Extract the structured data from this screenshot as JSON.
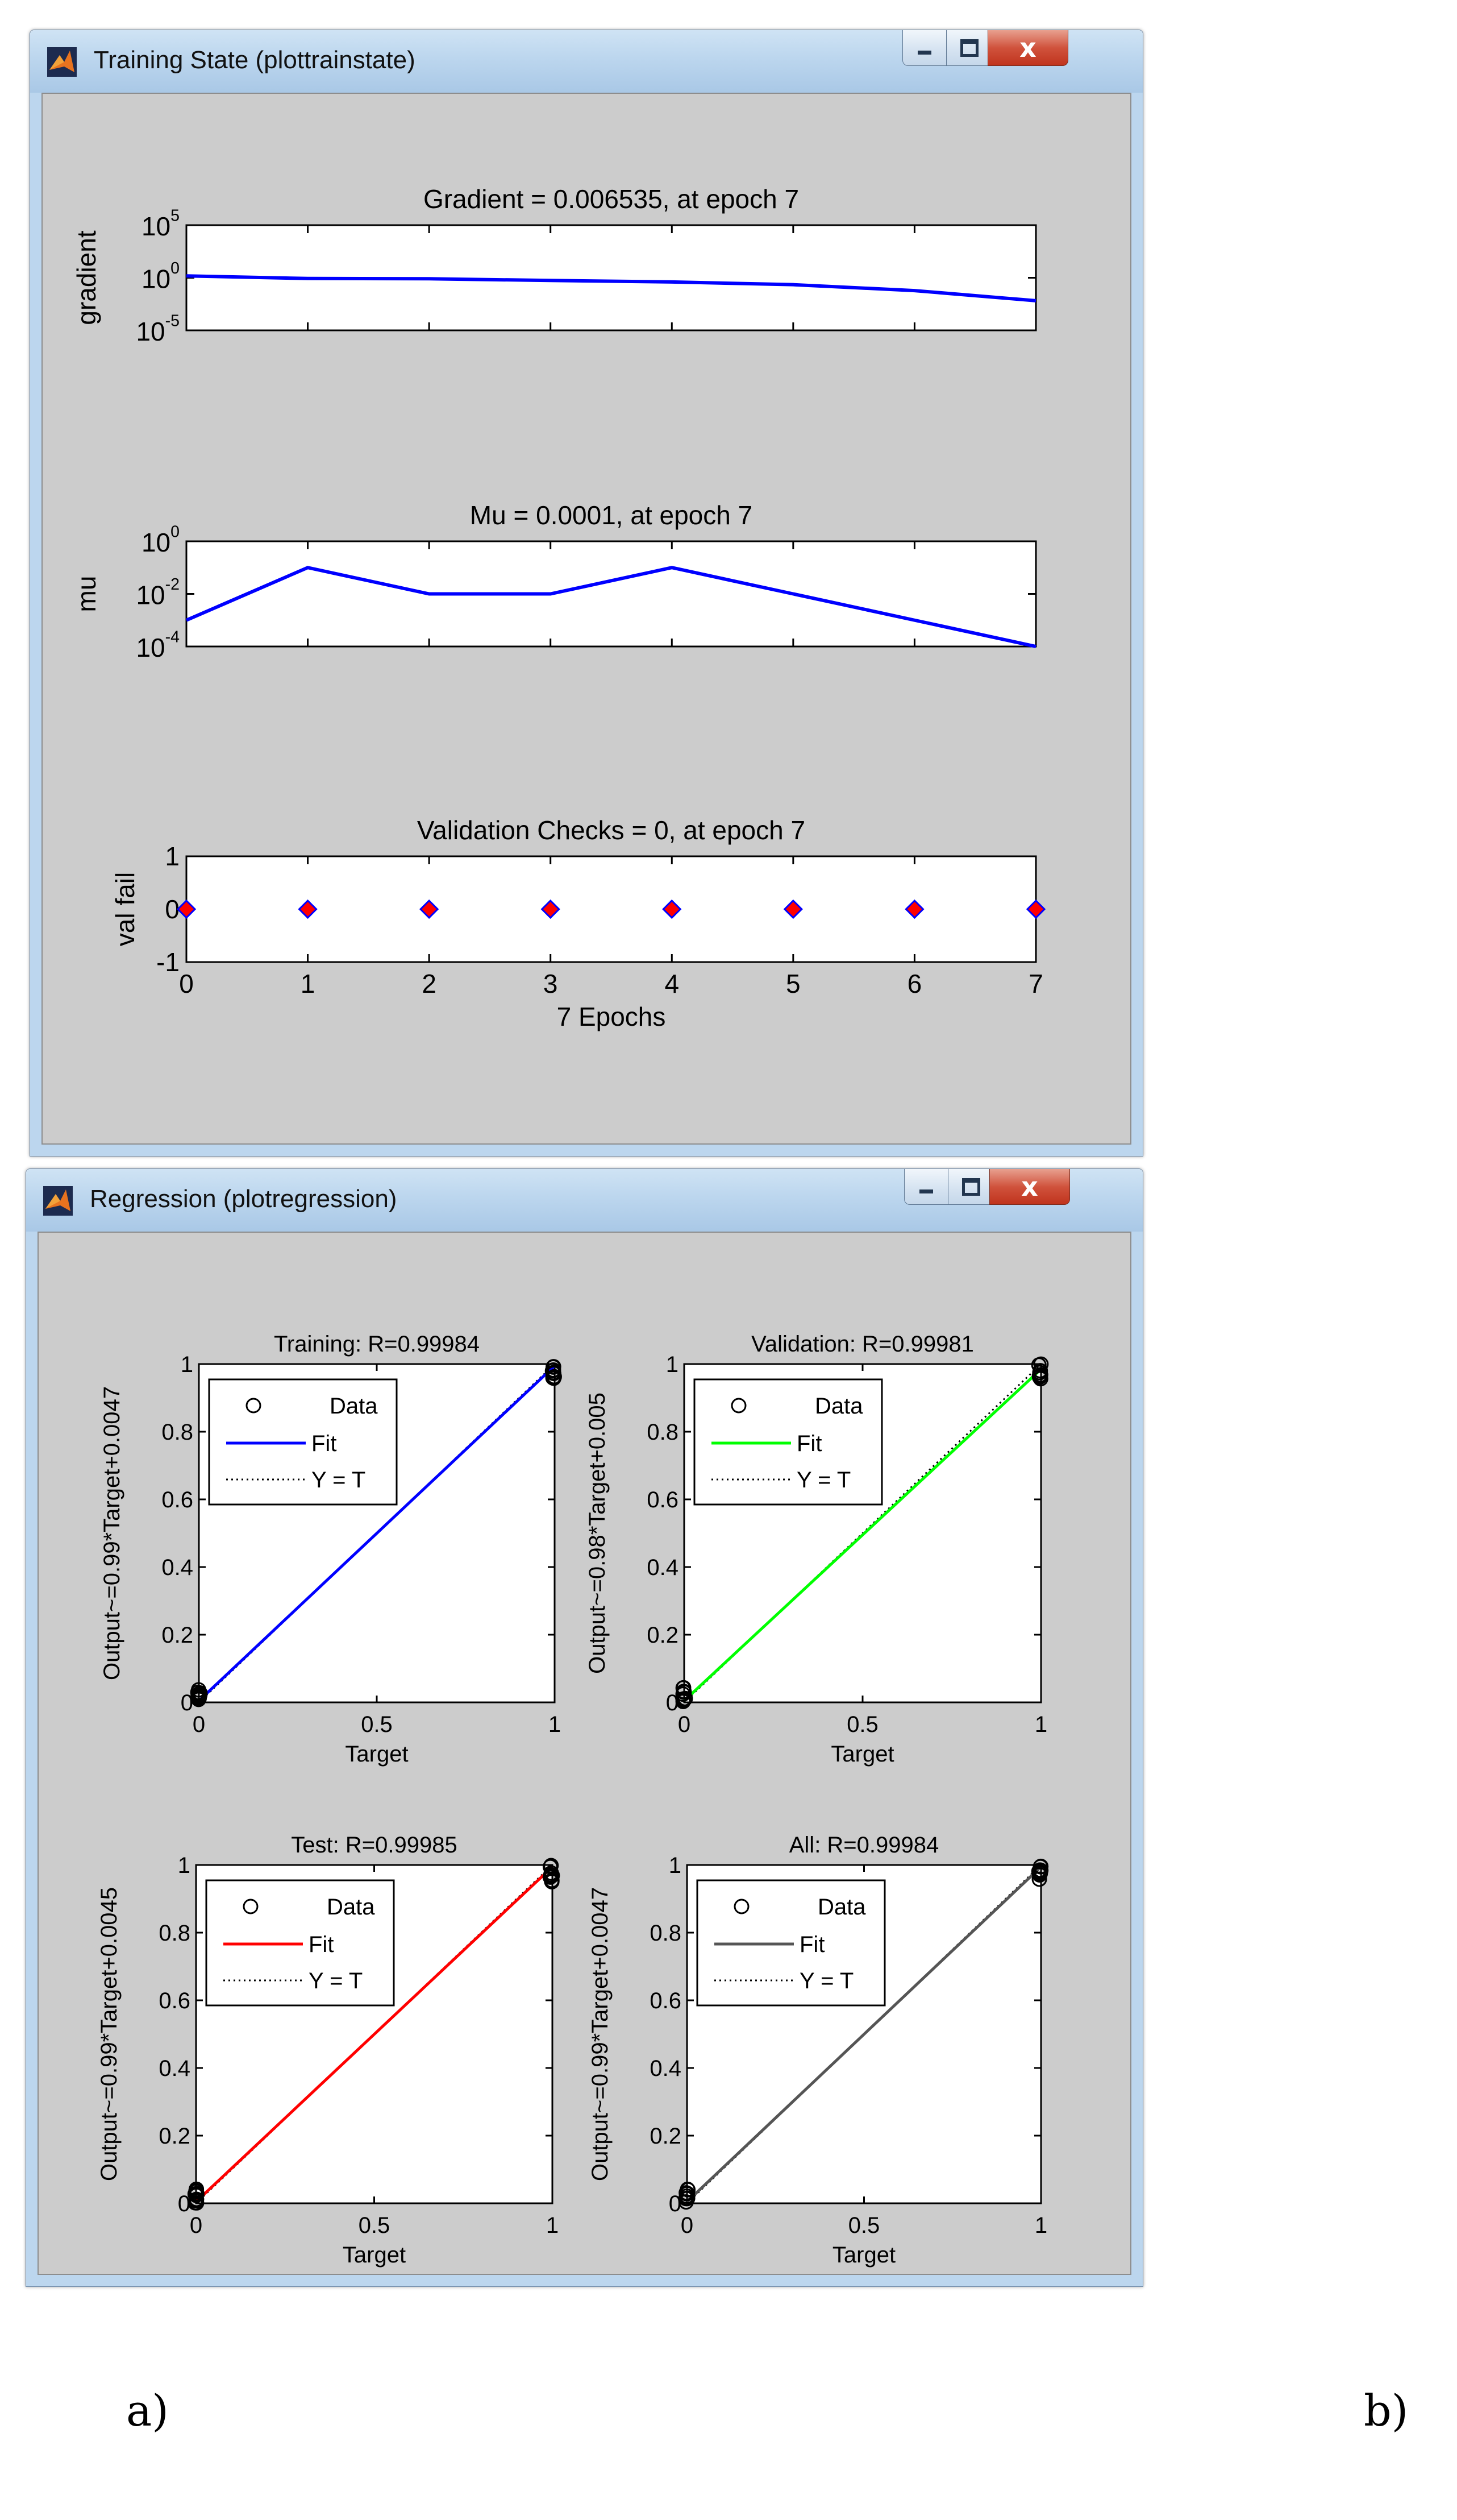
{
  "window_a": {
    "title": "Training State (plottrainstate)",
    "buttons": {
      "minimize": "minimize",
      "maximize": "maximize",
      "close": "x"
    }
  },
  "window_b": {
    "title": "Regression (plotregression)",
    "buttons": {
      "minimize": "minimize",
      "maximize": "maximize",
      "close": "x"
    }
  },
  "labels": {
    "a": "a)",
    "b": "b)"
  },
  "icons": [
    "matlab-figure-icon",
    "minimize-icon",
    "maximize-icon",
    "close-icon"
  ],
  "colors": {
    "line_blue": "#0000ff",
    "marker_red": "#ff0000",
    "fit_green": "#00ff00",
    "fit_red": "#ff0000",
    "fit_gray": "#555555",
    "client_bg": "#cccccc"
  },
  "chart_data": [
    {
      "type": "line",
      "title": "Gradient = 0.006535, at epoch 7",
      "xlabel": "",
      "ylabel": "gradient",
      "yscale": "log",
      "ylim_exp": [
        -5,
        5
      ],
      "ytick_labels": [
        {
          "base": "10",
          "exp": "5"
        },
        {
          "base": "10",
          "exp": "0"
        },
        {
          "base": "10",
          "exp": "-5"
        }
      ],
      "x": [
        0,
        1,
        2,
        3,
        4,
        5,
        6,
        7
      ],
      "y": [
        1.5,
        0.85,
        0.8,
        0.55,
        0.4,
        0.22,
        0.06,
        0.006535
      ]
    },
    {
      "type": "line",
      "title": "Mu = 0.0001, at epoch 7",
      "xlabel": "",
      "ylabel": "mu",
      "yscale": "log",
      "ylim_exp": [
        -4,
        0
      ],
      "ytick_labels": [
        {
          "base": "10",
          "exp": "0"
        },
        {
          "base": "10",
          "exp": "-2"
        },
        {
          "base": "10",
          "exp": "-4"
        }
      ],
      "x": [
        0,
        1,
        2,
        3,
        4,
        5,
        6,
        7
      ],
      "y": [
        0.001,
        0.1,
        0.01,
        0.01,
        0.1,
        0.01,
        0.001,
        0.0001
      ]
    },
    {
      "type": "scatter",
      "title": "Validation Checks = 0, at epoch 7",
      "xlabel": "7 Epochs",
      "ylabel": "val fail",
      "ylim": [
        -1,
        1
      ],
      "yticks": [
        "1",
        "0",
        "-1"
      ],
      "xticks": [
        "0",
        "1",
        "2",
        "3",
        "4",
        "5",
        "6",
        "7"
      ],
      "x": [
        0,
        1,
        2,
        3,
        4,
        5,
        6,
        7
      ],
      "y": [
        0,
        0,
        0,
        0,
        0,
        0,
        0,
        0
      ]
    },
    {
      "type": "scatter",
      "title": "Training: R=0.99984",
      "xlabel": "Target",
      "ylabel": "Output~=0.99*Target+0.0047",
      "xlim": [
        0,
        1
      ],
      "ylim": [
        0,
        1
      ],
      "xticks": [
        "0",
        "0.5",
        "1"
      ],
      "yticks": [
        "1",
        "0.8",
        "0.6",
        "0.4",
        "0.2",
        "0"
      ],
      "fit": {
        "slope": 0.99,
        "intercept": 0.0047,
        "color": "#0000ff"
      },
      "legend": [
        "Data",
        "Fit",
        "Y = T"
      ]
    },
    {
      "type": "scatter",
      "title": "Validation: R=0.99981",
      "xlabel": "Target",
      "ylabel": "Output~=0.98*Target+0.005",
      "xlim": [
        0,
        1
      ],
      "ylim": [
        0,
        1
      ],
      "xticks": [
        "0",
        "0.5",
        "1"
      ],
      "yticks": [
        "1",
        "0.8",
        "0.6",
        "0.4",
        "0.2",
        "0"
      ],
      "fit": {
        "slope": 0.98,
        "intercept": 0.005,
        "color": "#00ff00"
      },
      "legend": [
        "Data",
        "Fit",
        "Y = T"
      ]
    },
    {
      "type": "scatter",
      "title": "Test: R=0.99985",
      "xlabel": "Target",
      "ylabel": "Output~=0.99*Target+0.0045",
      "xlim": [
        0,
        1
      ],
      "ylim": [
        0,
        1
      ],
      "xticks": [
        "0",
        "0.5",
        "1"
      ],
      "yticks": [
        "1",
        "0.8",
        "0.6",
        "0.4",
        "0.2",
        "0"
      ],
      "fit": {
        "slope": 0.99,
        "intercept": 0.0045,
        "color": "#ff0000"
      },
      "legend": [
        "Data",
        "Fit",
        "Y = T"
      ]
    },
    {
      "type": "scatter",
      "title": "All: R=0.99984",
      "xlabel": "Target",
      "ylabel": "Output~=0.99*Target+0.0047",
      "xlim": [
        0,
        1
      ],
      "ylim": [
        0,
        1
      ],
      "xticks": [
        "0",
        "0.5",
        "1"
      ],
      "yticks": [
        "1",
        "0.8",
        "0.6",
        "0.4",
        "0.2",
        "0"
      ],
      "fit": {
        "slope": 0.99,
        "intercept": 0.0047,
        "color": "#555555"
      },
      "legend": [
        "Data",
        "Fit",
        "Y = T"
      ]
    }
  ]
}
